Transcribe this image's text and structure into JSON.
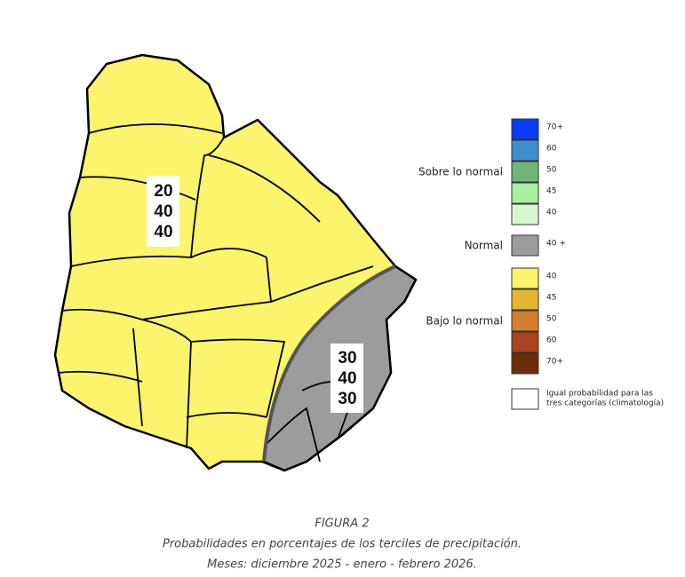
{
  "map": {
    "regions": [
      {
        "values": [
          20,
          40,
          40
        ]
      },
      {
        "values": [
          30,
          40,
          30
        ]
      }
    ]
  },
  "legend": {
    "groups": [
      {
        "label": "Sobre lo normal",
        "items": [
          {
            "label": "70+",
            "color": "#0a3cf5"
          },
          {
            "label": "60",
            "color": "#3f8fcf"
          },
          {
            "label": "50",
            "color": "#72b677"
          },
          {
            "label": "45",
            "color": "#a8f0a0"
          },
          {
            "label": "40",
            "color": "#d7f7d0"
          }
        ]
      },
      {
        "label": "Normal",
        "items": [
          {
            "label": "40 +",
            "color": "#9c9c9c"
          }
        ]
      },
      {
        "label": "Bajo lo normal",
        "items": [
          {
            "label": "40",
            "color": "#fbf46c"
          },
          {
            "label": "45",
            "color": "#e5b531"
          },
          {
            "label": "50",
            "color": "#d17e2e"
          },
          {
            "label": "60",
            "color": "#ab4222"
          },
          {
            "label": "70+",
            "color": "#6b2d0a"
          }
        ]
      },
      {
        "items": [
          {
            "lines": [
              "Igual probabilidad para las",
              "tres categorías (climatología)"
            ],
            "color": "#ffffff"
          }
        ]
      }
    ]
  },
  "caption": {
    "figure": "FIGURA 2",
    "line1": "Probabilidades en porcentajes de los terciles de precipitación.",
    "line2": "Meses: diciembre 2025 - enero - febrero 2026."
  }
}
